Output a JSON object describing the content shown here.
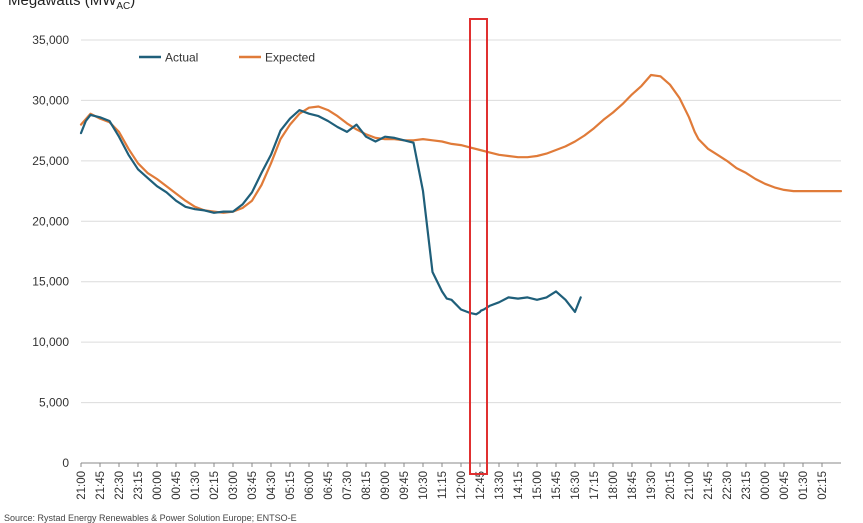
{
  "chart_data": {
    "type": "line",
    "ylabel_main": "Megawatts (MW",
    "ylabel_sub": "AC",
    "ylabel_close": ")",
    "ylim": [
      0,
      35000
    ],
    "yticks": [
      "0",
      "5,000",
      "10,000",
      "15,000",
      "20,000",
      "25,000",
      "30,000",
      "35,000"
    ],
    "ytick_values": [
      0,
      5000,
      10000,
      15000,
      20000,
      25000,
      30000,
      35000
    ],
    "xticks": [
      "21:00",
      "21:45",
      "22:30",
      "23:15",
      "00:00",
      "00:45",
      "01:30",
      "02:15",
      "03:00",
      "03:45",
      "04:30",
      "05:15",
      "06:00",
      "06:45",
      "07:30",
      "08:15",
      "09:00",
      "09:45",
      "10:30",
      "11:15",
      "12:00",
      "12:45",
      "13:30",
      "14:15",
      "15:00",
      "15:45",
      "16:30",
      "17:15",
      "18:00",
      "18:45",
      "19:30",
      "20:15",
      "21:00",
      "21:45",
      "22:30",
      "23:15",
      "00:00",
      "00:45",
      "01:30",
      "02:15"
    ],
    "grid": "horizontal",
    "legend_position": "top-left",
    "series": [
      {
        "name": "Actual",
        "color": "#1f5f7a",
        "x": [
          0,
          0.25,
          0.5,
          1,
          1.5,
          2,
          2.5,
          3,
          3.5,
          4,
          4.5,
          5,
          5.5,
          6,
          6.5,
          7,
          7.5,
          8,
          8.5,
          9,
          9.5,
          10,
          10.5,
          11,
          11.5,
          12,
          12.5,
          13,
          13.5,
          14,
          14.5,
          15,
          15.5,
          16,
          16.5,
          17,
          17.5,
          18,
          18.5,
          19,
          19.25,
          19.5,
          20,
          20.5,
          20.8,
          21,
          21.05,
          21.2,
          21.5,
          22,
          22.5,
          23,
          23.5,
          24,
          24.5,
          25,
          25.5,
          26,
          26.3
        ],
        "y": [
          27300,
          28300,
          28800,
          28600,
          28300,
          27000,
          25500,
          24300,
          23600,
          22900,
          22400,
          21700,
          21200,
          21000,
          20900,
          20700,
          20800,
          20800,
          21400,
          22400,
          24000,
          25500,
          27500,
          28500,
          29200,
          28900,
          28700,
          28300,
          27800,
          27400,
          28000,
          27000,
          26600,
          27000,
          26900,
          26700,
          26500,
          22500,
          15800,
          14200,
          13600,
          13500,
          12700,
          12400,
          12300,
          12500,
          12600,
          12700,
          13000,
          13300,
          13700,
          13600,
          13700,
          13500,
          13700,
          14200,
          13500,
          12500,
          13700
        ]
      },
      {
        "name": "Expected",
        "color": "#e07b39",
        "x": [
          0,
          0.5,
          1,
          1.5,
          2,
          2.5,
          3,
          3.5,
          4,
          4.5,
          5,
          5.5,
          6,
          6.5,
          7,
          7.5,
          8,
          8.5,
          9,
          9.5,
          10,
          10.5,
          11,
          11.5,
          12,
          12.5,
          13,
          13.5,
          14,
          14.5,
          15,
          15.5,
          16,
          16.5,
          17,
          17.5,
          18,
          18.5,
          19,
          19.5,
          20,
          20.5,
          21,
          21.5,
          22,
          22.5,
          23,
          23.5,
          24,
          24.5,
          25,
          25.5,
          26,
          26.5,
          27,
          27.5,
          28,
          28.5,
          29,
          29.5,
          30,
          30.5,
          31,
          31.5,
          32,
          32.3,
          32.5,
          33,
          33.5,
          34,
          34.5,
          35,
          35.5,
          36,
          36.5,
          37,
          37.5,
          38,
          38.5,
          39,
          39.5,
          40
        ],
        "y": [
          28000,
          28900,
          28500,
          28200,
          27400,
          26000,
          24800,
          24000,
          23500,
          22900,
          22300,
          21700,
          21200,
          20900,
          20800,
          20700,
          20800,
          21100,
          21700,
          23000,
          24800,
          26800,
          28000,
          28900,
          29400,
          29500,
          29200,
          28700,
          28100,
          27600,
          27200,
          26900,
          26800,
          26800,
          26700,
          26700,
          26800,
          26700,
          26600,
          26400,
          26300,
          26100,
          25900,
          25700,
          25500,
          25400,
          25300,
          25300,
          25400,
          25600,
          25900,
          26200,
          26600,
          27100,
          27700,
          28400,
          29000,
          29700,
          30500,
          31200,
          32100,
          32000,
          31300,
          30200,
          28600,
          27400,
          26800,
          26000,
          25500,
          25000,
          24400,
          24000,
          23500,
          23100,
          22800,
          22600,
          22500,
          22500,
          22500,
          22500,
          22500,
          22500
        ]
      }
    ]
  },
  "source_text": "Source: Rystad Energy Renewables & Power Solution Europe; ENTSO-E",
  "highlight_color": "#e03030"
}
